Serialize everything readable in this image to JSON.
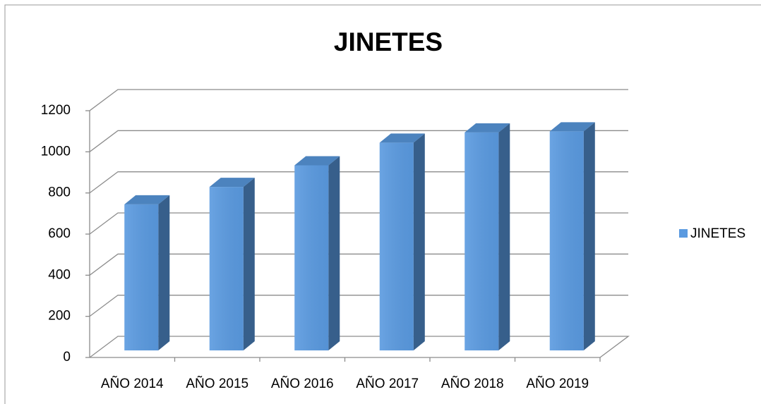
{
  "chart_data": {
    "type": "bar3d",
    "title": "JINETES",
    "categories": [
      "AÑO 2014",
      "AÑO 2015",
      "AÑO 2016",
      "AÑO 2017",
      "AÑO 2018",
      "AÑO 2019"
    ],
    "series": [
      {
        "name": "JINETES",
        "color": "#5a9ae0",
        "values": [
          710,
          795,
          900,
          1010,
          1060,
          1065
        ]
      }
    ],
    "ylim": [
      0,
      1200
    ],
    "yticks": [
      0,
      200,
      400,
      600,
      800,
      1000,
      1200
    ],
    "grid": true,
    "legend": "right"
  }
}
